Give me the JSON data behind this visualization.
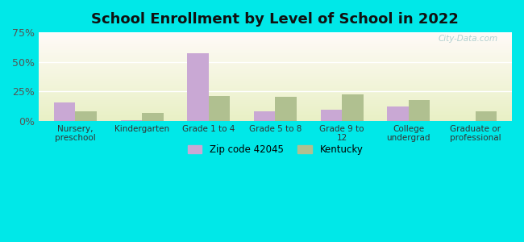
{
  "title": "School Enrollment by Level of School in 2022",
  "categories": [
    "Nursery,\npreschool",
    "Kindergarten",
    "Grade 1 to 4",
    "Grade 5 to 8",
    "Grade 9 to\n12",
    "College\nundergrad",
    "Graduate or\nprofessional"
  ],
  "zip_values": [
    15.5,
    1.0,
    57.5,
    8.5,
    9.5,
    12.5,
    0.0
  ],
  "ky_values": [
    8.5,
    6.5,
    21.5,
    20.5,
    22.5,
    17.5,
    8.5
  ],
  "zip_color": "#c9a8d4",
  "ky_color": "#b0c090",
  "ylim": [
    0,
    75
  ],
  "yticks": [
    0,
    25,
    50,
    75
  ],
  "ytick_labels": [
    "0%",
    "25%",
    "50%",
    "75%"
  ],
  "zip_label": "Zip code 42045",
  "ky_label": "Kentucky",
  "bg_outer": "#00e8e8",
  "title_fontsize": 13,
  "watermark": "City-Data.com"
}
